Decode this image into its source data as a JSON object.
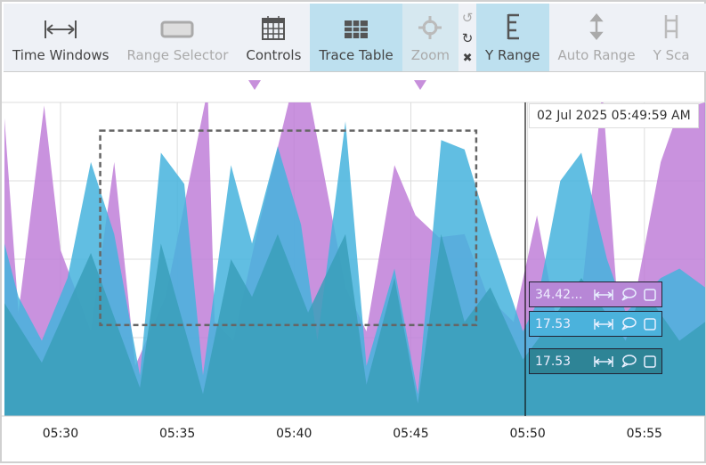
{
  "toolbar": {
    "items": [
      {
        "label": "Time Windows",
        "icon": "time-windows-icon",
        "state": "normal"
      },
      {
        "label": "Range Selector",
        "icon": "range-selector-icon",
        "state": "disabled"
      },
      {
        "label": "Controls",
        "icon": "calendar-icon",
        "state": "normal"
      },
      {
        "label": "Trace Table",
        "icon": "table-icon",
        "state": "active"
      },
      {
        "label": "Zoom",
        "icon": "crosshair-icon",
        "state": "disabled"
      },
      {
        "label": "Y Range",
        "icon": "y-range-icon",
        "state": "active"
      },
      {
        "label": "Auto Range",
        "icon": "vertical-arrow-icon",
        "state": "disabled"
      },
      {
        "label": "Y Sca",
        "icon": "y-scale-icon",
        "state": "disabled"
      }
    ],
    "undo": "↺",
    "redo": "↻",
    "clear": "✖"
  },
  "cursor_time": "02 Jul 2025 05:49:59 AM",
  "trace_labels": [
    {
      "value": "34.42...",
      "color": "#b787d6"
    },
    {
      "value": "17.53",
      "color": "#4bb2dc"
    },
    {
      "value": "17.53",
      "color": "#2e8496"
    }
  ],
  "chart_data": {
    "type": "area",
    "x_unit": "minutes past 05:00",
    "xlim": [
      27.6,
      57.6
    ],
    "ylim": [
      0,
      100
    ],
    "x_ticks": [
      {
        "v": 30,
        "label": "05:30"
      },
      {
        "v": 35,
        "label": "05:35"
      },
      {
        "v": 40,
        "label": "05:40"
      },
      {
        "v": 45,
        "label": "05:45"
      },
      {
        "v": 50,
        "label": "05:50"
      },
      {
        "v": 55,
        "label": "05:55"
      }
    ],
    "cursor_x": 49.9,
    "markers_x": [
      38.3,
      45.4
    ],
    "selection": {
      "x": [
        31.7,
        47.8
      ],
      "y": [
        29,
        91
      ]
    },
    "series": [
      {
        "name": "purple",
        "color": "#c07fd8",
        "points": [
          [
            27.6,
            95
          ],
          [
            28.2,
            33
          ],
          [
            29.3,
            99
          ],
          [
            30.0,
            53
          ],
          [
            31.3,
            27
          ],
          [
            32.3,
            81
          ],
          [
            33.2,
            16
          ],
          [
            34.5,
            38
          ],
          [
            36.3,
            104
          ],
          [
            36.6,
            30
          ],
          [
            37.4,
            24
          ],
          [
            38.4,
            58
          ],
          [
            39.9,
            104
          ],
          [
            40.6,
            104
          ],
          [
            42.2,
            41
          ],
          [
            43.1,
            27
          ],
          [
            44.3,
            80
          ],
          [
            45.2,
            64
          ],
          [
            46.2,
            57
          ],
          [
            47.3,
            58
          ],
          [
            48.3,
            38
          ],
          [
            49.4,
            30
          ],
          [
            50.4,
            64
          ],
          [
            51.4,
            24
          ],
          [
            52.3,
            38
          ],
          [
            53.2,
            104
          ],
          [
            53.8,
            41
          ],
          [
            54.6,
            38
          ],
          [
            55.7,
            81
          ],
          [
            56.5,
            98
          ],
          [
            57.6,
            100
          ]
        ]
      },
      {
        "name": "lightblue",
        "color": "#45b3dd",
        "points": [
          [
            27.6,
            55
          ],
          [
            28.2,
            38
          ],
          [
            29.2,
            24
          ],
          [
            30.3,
            44
          ],
          [
            31.3,
            81
          ],
          [
            32.3,
            58
          ],
          [
            33.4,
            13
          ],
          [
            34.3,
            84
          ],
          [
            35.3,
            74
          ],
          [
            36.1,
            13
          ],
          [
            37.3,
            80
          ],
          [
            38.2,
            55
          ],
          [
            39.3,
            86
          ],
          [
            40.3,
            61
          ],
          [
            41.0,
            24
          ],
          [
            42.2,
            94
          ],
          [
            43.1,
            16
          ],
          [
            44.3,
            47
          ],
          [
            45.3,
            7
          ],
          [
            46.3,
            88
          ],
          [
            47.3,
            85
          ],
          [
            48.4,
            58
          ],
          [
            49.8,
            27
          ],
          [
            50.4,
            36
          ],
          [
            51.4,
            75
          ],
          [
            52.3,
            84
          ],
          [
            53.4,
            50
          ],
          [
            54.2,
            33
          ],
          [
            54.9,
            38
          ],
          [
            55.7,
            44
          ],
          [
            56.5,
            47
          ],
          [
            57.6,
            41
          ]
        ]
      },
      {
        "name": "teal",
        "color": "#3a9fba",
        "points": [
          [
            27.6,
            36
          ],
          [
            29.2,
            17
          ],
          [
            31.3,
            52
          ],
          [
            33.4,
            9
          ],
          [
            34.3,
            55
          ],
          [
            36.1,
            7
          ],
          [
            37.3,
            50
          ],
          [
            38.2,
            38
          ],
          [
            39.3,
            58
          ],
          [
            40.6,
            33
          ],
          [
            42.2,
            58
          ],
          [
            43.1,
            10
          ],
          [
            44.3,
            44
          ],
          [
            45.3,
            4
          ],
          [
            46.3,
            58
          ],
          [
            47.3,
            30
          ],
          [
            48.4,
            41
          ],
          [
            49.8,
            18
          ],
          [
            50.4,
            24
          ],
          [
            52.3,
            44
          ],
          [
            54.2,
            24
          ],
          [
            54.9,
            41
          ],
          [
            56.5,
            24
          ],
          [
            57.6,
            30
          ]
        ]
      }
    ]
  }
}
